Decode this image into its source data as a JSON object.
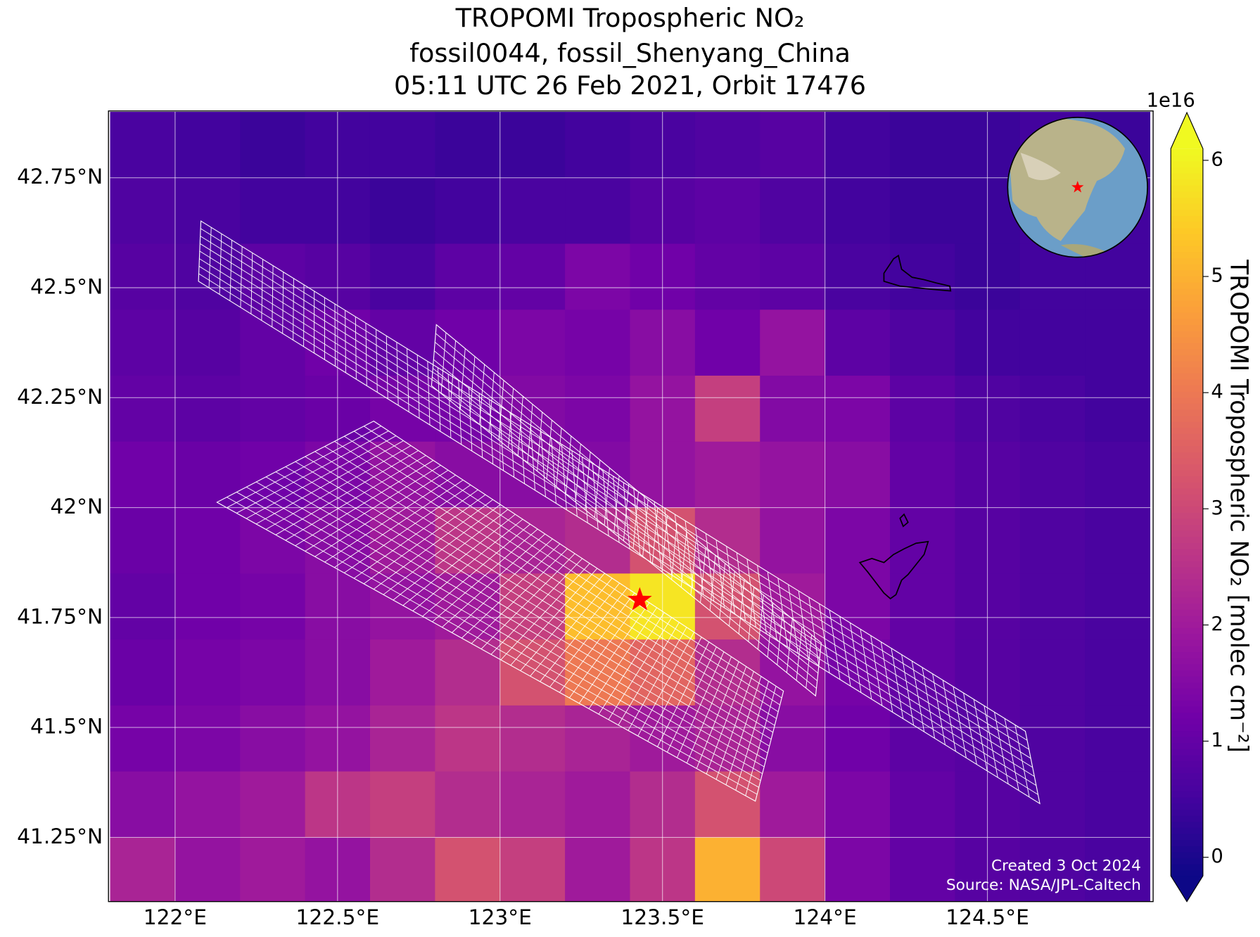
{
  "chart_data": {
    "type": "heatmap",
    "title": [
      "TROPOMI Tropospheric NO₂",
      "fossil0044, fossil_Shenyang_China",
      "05:11 UTC 26 Feb 2021, Orbit 17476"
    ],
    "xlim": [
      121.795,
      125.01
    ],
    "ylim": [
      41.104,
      42.902
    ],
    "xticks": [
      {
        "value": 122,
        "label": "122°E"
      },
      {
        "value": 122.5,
        "label": "122.5°E"
      },
      {
        "value": 123,
        "label": "123°E"
      },
      {
        "value": 123.5,
        "label": "123.5°E"
      },
      {
        "value": 124,
        "label": "124°E"
      },
      {
        "value": 124.5,
        "label": "124.5°E"
      }
    ],
    "yticks": [
      {
        "value": 42.75,
        "label": "42.75°N"
      },
      {
        "value": 42.5,
        "label": "42.5°N"
      },
      {
        "value": 42.25,
        "label": "42.25°N"
      },
      {
        "value": 42,
        "label": "42°N"
      },
      {
        "value": 41.75,
        "label": "41.75°N"
      },
      {
        "value": 41.5,
        "label": "41.5°N"
      },
      {
        "value": 41.25,
        "label": "41.25°N"
      }
    ],
    "grid": true,
    "lon_edges": [
      121.8,
      122.0,
      122.2,
      122.4,
      122.6,
      122.8,
      123.0,
      123.2,
      123.4,
      123.6,
      123.8,
      124.0,
      124.2,
      124.4,
      124.6,
      124.8,
      125.0
    ],
    "lat_edges": [
      42.9,
      42.75,
      42.6,
      42.45,
      42.3,
      42.15,
      42.0,
      41.85,
      41.7,
      41.55,
      41.4,
      41.25,
      41.1
    ],
    "values": [
      [
        0.6,
        0.5,
        0.4,
        0.5,
        0.5,
        0.4,
        0.4,
        0.5,
        0.6,
        0.7,
        0.8,
        0.5,
        0.4,
        0.4,
        0.5,
        0.4
      ],
      [
        0.7,
        0.6,
        0.5,
        0.5,
        0.4,
        0.5,
        0.6,
        0.6,
        0.8,
        0.9,
        0.7,
        0.5,
        0.4,
        0.4,
        0.5,
        0.5
      ],
      [
        0.8,
        0.7,
        0.9,
        0.8,
        0.6,
        0.9,
        1.0,
        1.4,
        1.2,
        1.0,
        0.9,
        0.6,
        0.5,
        0.4,
        0.5,
        0.5
      ],
      [
        0.9,
        0.8,
        1.0,
        1.2,
        1.0,
        1.2,
        1.4,
        1.3,
        1.6,
        1.2,
        1.8,
        0.9,
        0.7,
        0.5,
        0.5,
        0.5
      ],
      [
        1.0,
        0.9,
        1.0,
        1.1,
        1.3,
        1.3,
        1.5,
        1.4,
        1.8,
        2.8,
        1.5,
        1.4,
        0.9,
        0.7,
        0.6,
        0.5
      ],
      [
        1.2,
        1.1,
        1.2,
        1.4,
        1.8,
        1.6,
        1.6,
        1.5,
        1.8,
        2.0,
        1.8,
        1.6,
        1.0,
        0.8,
        0.7,
        0.6
      ],
      [
        1.1,
        1.2,
        1.4,
        1.6,
        2.0,
        2.6,
        2.2,
        2.4,
        3.2,
        2.4,
        1.8,
        1.4,
        1.0,
        0.8,
        0.7,
        0.6
      ],
      [
        1.0,
        1.2,
        1.3,
        1.6,
        1.8,
        2.0,
        2.8,
        5.2,
        5.8,
        3.2,
        2.0,
        1.4,
        1.0,
        0.8,
        0.7,
        0.6
      ],
      [
        1.1,
        1.3,
        1.4,
        1.6,
        2.0,
        2.4,
        3.2,
        4.0,
        3.6,
        2.4,
        1.8,
        1.3,
        1.0,
        0.8,
        0.7,
        0.6
      ],
      [
        1.3,
        1.4,
        1.6,
        1.8,
        2.2,
        2.6,
        2.4,
        2.2,
        2.0,
        2.2,
        1.6,
        1.2,
        0.9,
        0.8,
        0.7,
        0.6
      ],
      [
        1.6,
        1.8,
        2.0,
        2.6,
        2.8,
        2.4,
        2.2,
        2.0,
        2.4,
        3.2,
        2.0,
        1.4,
        1.0,
        0.8,
        0.7,
        0.6
      ],
      [
        2.2,
        1.8,
        2.0,
        1.8,
        2.4,
        3.2,
        2.8,
        2.0,
        2.6,
        5.0,
        3.0,
        1.4,
        1.0,
        0.8,
        0.7,
        0.6
      ]
    ],
    "site": {
      "lon": 123.43,
      "lat": 41.79,
      "color": "#ff0000"
    },
    "colorbar": {
      "colormap": "plasma",
      "lim": [
        -0.16,
        6.1
      ],
      "ticks": [
        0,
        1,
        2,
        3,
        4,
        5,
        6
      ],
      "offset_label": "1e16",
      "label": "TROPOMI Tropospheric NO₂ [molec cm⁻²]"
    },
    "credits": [
      "Created 3 Oct 2024",
      "Source: NASA/JPL-Caltech"
    ]
  }
}
